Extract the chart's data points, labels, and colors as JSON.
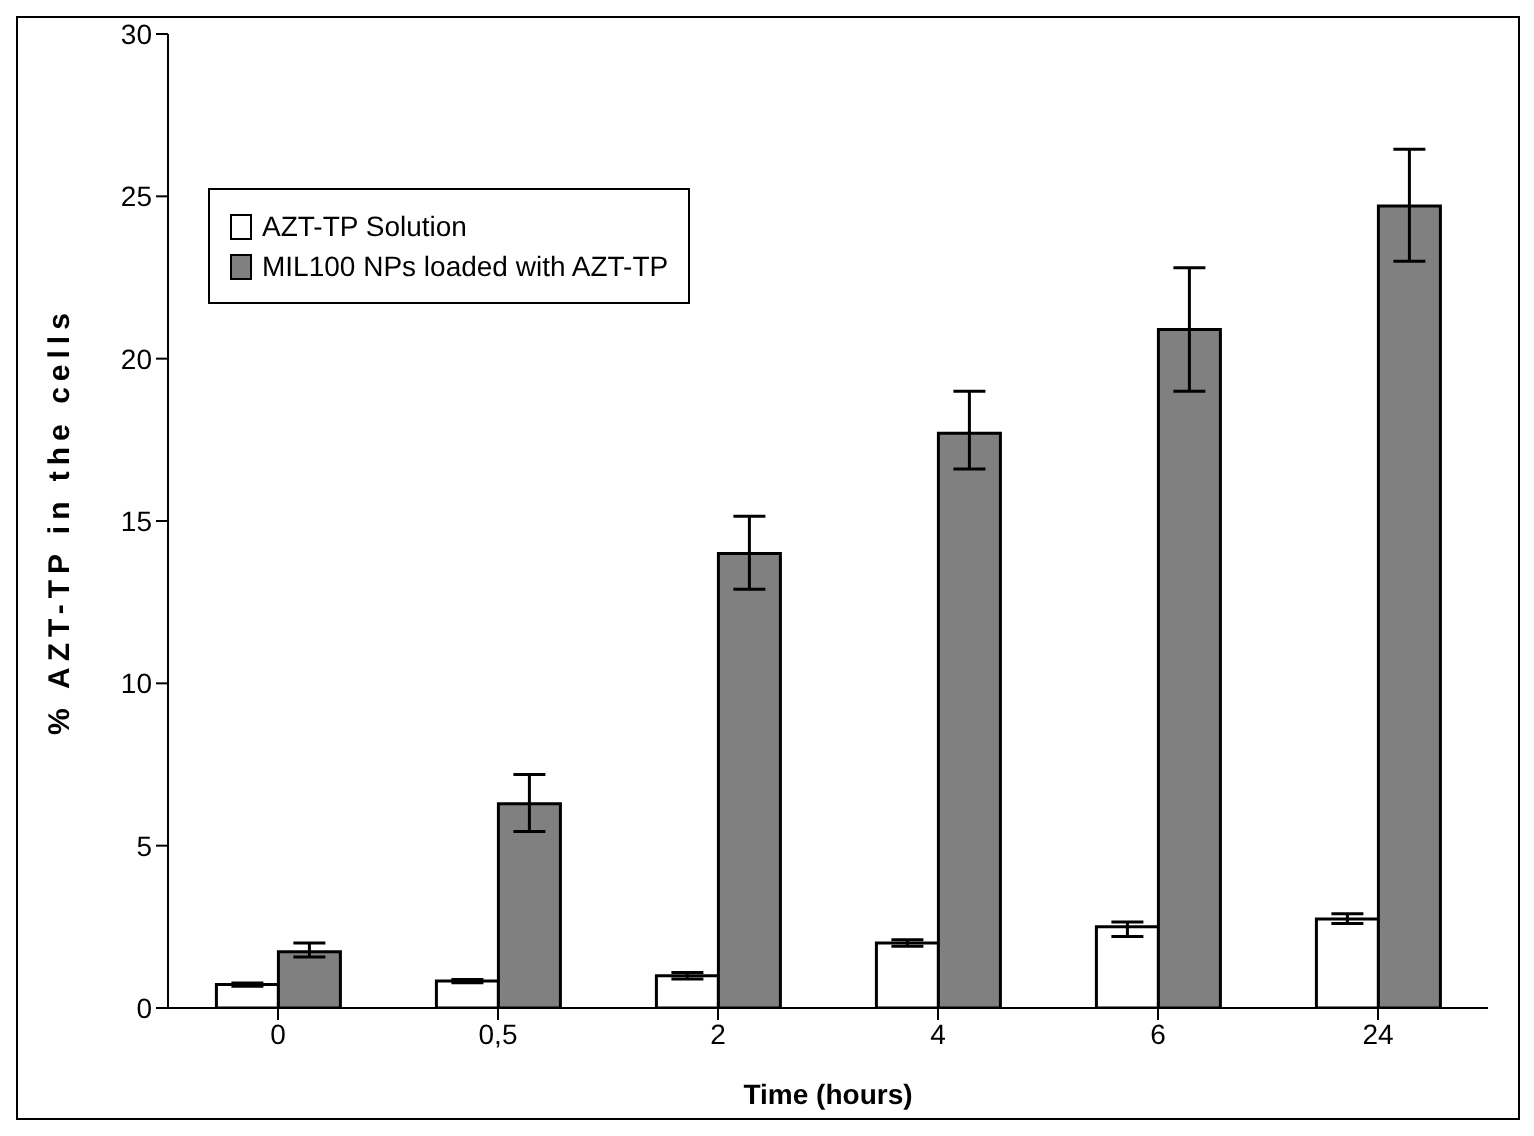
{
  "chart_data": {
    "type": "bar",
    "xlabel": "Time (hours)",
    "ylabel": "% AZT-TP in the cells",
    "categories": [
      "0",
      "0,5",
      "2",
      "4",
      "6",
      "24"
    ],
    "series": [
      {
        "name": "AZT-TP Solution",
        "color": "#ffffff",
        "values": [
          0.72,
          0.83,
          0.99,
          2.0,
          2.5,
          2.74
        ],
        "errors": [
          0.05,
          0.05,
          0.1,
          0.1,
          [
            2.2,
            2.65
          ],
          [
            2.6,
            2.9
          ]
        ]
      },
      {
        "name": "MIL100 NPs loaded with AZT-TP",
        "color": "#808080",
        "values": [
          1.73,
          6.29,
          14.0,
          17.7,
          20.9,
          24.7
        ],
        "errors": [
          [
            1.57,
            2.0
          ],
          [
            5.44,
            7.19
          ],
          [
            12.9,
            15.15
          ],
          [
            16.6,
            19.0
          ],
          [
            19.0,
            22.8
          ],
          [
            23.0,
            26.45
          ]
        ]
      }
    ],
    "ylim": [
      0,
      30
    ],
    "yticks": [
      0,
      5,
      10,
      15,
      20,
      25,
      30
    ],
    "grid": false,
    "legend": "top left"
  }
}
